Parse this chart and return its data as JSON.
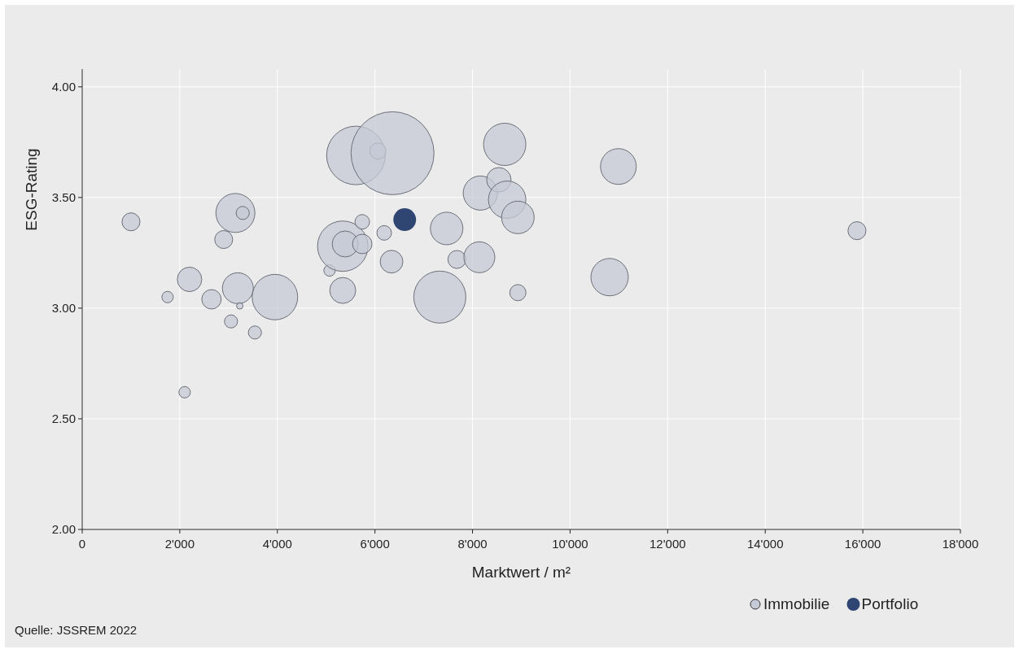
{
  "chart_data": {
    "type": "bubble",
    "xlabel": "Marktwert / m²",
    "ylabel": "ESG-Rating",
    "xlim": [
      0,
      18000
    ],
    "ylim": [
      2,
      4.08
    ],
    "xticks": [
      0,
      {
        "value": 2000,
        "label": "2'000"
      },
      {
        "value": 4000,
        "label": "4'000"
      },
      {
        "value": 6000,
        "label": "6'000"
      },
      {
        "value": 8000,
        "label": "8'000"
      },
      {
        "value": 10000,
        "label": "10'000"
      },
      {
        "value": 12000,
        "label": "12'000"
      },
      {
        "value": 14000,
        "label": "14'000"
      },
      {
        "value": 16000,
        "label": "16'000"
      },
      {
        "value": 18000,
        "label": "18'000"
      }
    ],
    "yticks": [
      {
        "value": 2,
        "label": "2.00"
      },
      {
        "value": 2.5,
        "label": "2.50"
      },
      {
        "value": 3,
        "label": "3.00"
      },
      {
        "value": 3.5,
        "label": "3.50"
      },
      {
        "value": 4,
        "label": "4.00"
      }
    ],
    "grid": true,
    "legend": "bottom right",
    "series": [
      {
        "name": "Immobilie",
        "color": "#c5cad6",
        "x": [
          1000,
          1750,
          2100,
          2200,
          2650,
          2900,
          3050,
          3140,
          3290,
          3190,
          3230,
          3540,
          3950,
          5070,
          5340,
          5340,
          5390,
          5740,
          5740,
          5610,
          6060,
          6360,
          6190,
          6340,
          7470,
          7330,
          7680,
          8140,
          8160,
          8540,
          8710,
          8930,
          8660,
          8930,
          10810,
          10990,
          15880
        ],
        "values": [
          3.39,
          3.05,
          2.62,
          3.13,
          3.04,
          3.31,
          2.94,
          3.43,
          3.43,
          3.09,
          3.01,
          2.89,
          3.05,
          3.17,
          3.08,
          3.28,
          3.29,
          3.29,
          3.39,
          3.69,
          3.71,
          3.7,
          3.34,
          3.21,
          3.36,
          3.05,
          3.22,
          3.23,
          3.52,
          3.58,
          3.49,
          3.41,
          3.74,
          3.07,
          3.14,
          3.64,
          3.35
        ],
        "sizes": [
          0.047,
          0.019,
          0.019,
          0.087,
          0.055,
          0.047,
          0.025,
          0.221,
          0.025,
          0.139,
          0.006,
          0.025,
          0.301,
          0.019,
          0.098,
          0.369,
          0.098,
          0.055,
          0.031,
          0.498,
          0.038,
          1,
          0.031,
          0.075,
          0.154,
          0.394,
          0.047,
          0.139,
          0.17,
          0.087,
          0.203,
          0.154,
          0.26,
          0.038,
          0.203,
          0.186,
          0.047
        ]
      },
      {
        "name": "Portfolio",
        "color": "#2f4572",
        "x": [
          6610
        ],
        "values": [
          3.4
        ],
        "sizes": [
          0.075
        ]
      }
    ],
    "annotations": [
      "Quelle: JSSREM 2022"
    ]
  }
}
